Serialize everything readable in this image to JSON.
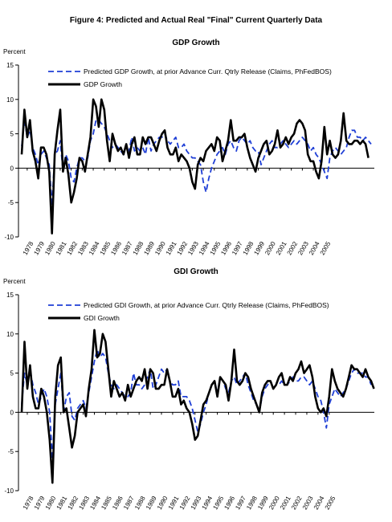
{
  "figure_title": "Figure 4: Predicted and Actual Real \"Final\" Current Quarterly Data",
  "chart_data": [
    {
      "type": "line",
      "title": "GDP Growth",
      "ylabel": "Percent",
      "ylim": [
        -10,
        15
      ],
      "yticks": [
        -10,
        -5,
        0,
        5,
        10,
        15
      ],
      "x_tick_labels": [
        "1978",
        "1979",
        "1980",
        "1981",
        "1982",
        "1983",
        "1984",
        "1985",
        "1986",
        "1987",
        "1988",
        "1989",
        "1990",
        "1991",
        "1992",
        "1993",
        "1994",
        "1995",
        "1996",
        "1997",
        "1998",
        "1999",
        "2000",
        "2001",
        "2002",
        "2003",
        "2004",
        "2005"
      ],
      "legend_position": "top-right",
      "series": [
        {
          "name": "Predicted GDP Growth, at prior Advance Curr. Qtrly Release (Claims, PhFedBOS)",
          "style": "dashed",
          "color": "#1f3fd6",
          "values": [
            3.2,
            7.0,
            4.5,
            5.5,
            3.0,
            2.0,
            0.5,
            2.0,
            2.5,
            1.5,
            0.5,
            -5.5,
            2.0,
            2.5,
            4.0,
            -0.5,
            2.0,
            1.0,
            -1.5,
            -2.0,
            0.0,
            1.5,
            1.5,
            1.0,
            1.5,
            4.0,
            5.0,
            7.0,
            7.0,
            6.5,
            6.0,
            5.0,
            4.0,
            3.0,
            3.5,
            3.0,
            2.5,
            2.0,
            2.0,
            2.5,
            4.5,
            2.5,
            3.0,
            2.5,
            3.0,
            2.0,
            4.5,
            2.5,
            3.5,
            4.0,
            4.5,
            4.5,
            5.0,
            4.0,
            3.5,
            4.0,
            4.5,
            3.0,
            3.0,
            3.5,
            2.5,
            2.0,
            1.5,
            1.5,
            1.0,
            0.5,
            -2.0,
            -3.5,
            -1.5,
            0.0,
            1.0,
            2.0,
            2.5,
            3.0,
            2.0,
            3.5,
            4.0,
            3.0,
            2.5,
            4.0,
            4.5,
            4.0,
            3.5,
            4.0,
            3.0,
            2.5,
            2.5,
            0.5,
            1.5,
            2.5,
            3.5,
            4.0,
            3.0,
            3.0,
            3.5,
            4.0,
            3.5,
            3.0,
            3.5,
            4.0,
            3.5,
            4.0,
            4.5,
            4.0,
            3.5,
            2.5,
            3.0,
            2.0,
            1.5,
            0.5,
            -0.5,
            -1.5,
            1.5,
            2.5,
            3.0,
            2.5,
            2.0,
            2.5,
            3.0,
            4.5,
            5.5,
            5.5,
            4.5,
            4.5,
            4.0,
            4.5,
            4.0,
            3.5
          ]
        },
        {
          "name": "GDP Growth",
          "style": "solid",
          "color": "#000000",
          "values": [
            2.0,
            8.5,
            4.5,
            7.0,
            2.5,
            1.0,
            -1.5,
            3.0,
            3.0,
            2.0,
            -0.5,
            -9.5,
            2.0,
            5.5,
            8.5,
            -0.5,
            1.5,
            -1.0,
            -5.0,
            -3.5,
            -1.5,
            1.5,
            1.0,
            -0.5,
            2.0,
            4.5,
            10.0,
            9.0,
            6.0,
            10.0,
            8.5,
            4.0,
            1.0,
            5.0,
            3.5,
            2.5,
            3.0,
            2.0,
            3.5,
            1.5,
            3.5,
            4.5,
            2.0,
            2.0,
            4.5,
            3.5,
            4.5,
            4.5,
            3.5,
            2.5,
            4.0,
            5.0,
            5.5,
            3.0,
            2.0,
            2.0,
            3.0,
            1.0,
            2.0,
            1.5,
            1.0,
            0.0,
            -2.0,
            -3.0,
            0.5,
            1.5,
            1.0,
            2.5,
            3.0,
            3.5,
            2.5,
            4.5,
            4.0,
            1.0,
            2.5,
            4.0,
            7.0,
            4.0,
            4.0,
            4.5,
            4.5,
            5.0,
            3.0,
            1.5,
            0.5,
            -0.5,
            1.5,
            2.5,
            3.5,
            4.0,
            2.0,
            2.5,
            3.5,
            5.5,
            3.0,
            3.5,
            4.5,
            3.5,
            4.5,
            5.0,
            6.5,
            7.0,
            6.5,
            5.5,
            2.0,
            1.0,
            1.0,
            -0.5,
            -1.5,
            1.0,
            6.0,
            2.0,
            4.0,
            2.0,
            1.5,
            2.0,
            4.0,
            8.0,
            4.0,
            3.5,
            3.5,
            4.0,
            4.0,
            3.5,
            4.0,
            3.5,
            1.5
          ]
        }
      ]
    },
    {
      "type": "line",
      "title": "GDI Growth",
      "ylabel": "Percent",
      "ylim": [
        -10,
        15
      ],
      "yticks": [
        -10,
        -5,
        0,
        5,
        10,
        15
      ],
      "x_tick_labels": [
        "1978",
        "1979",
        "1980",
        "1981",
        "1982",
        "1983",
        "1984",
        "1985",
        "1986",
        "1987",
        "1988",
        "1989",
        "1990",
        "1991",
        "1992",
        "1993",
        "1994",
        "1995",
        "1996",
        "1997",
        "1998",
        "1999",
        "2000",
        "2001",
        "2002",
        "2003",
        "2004",
        "2005"
      ],
      "legend_position": "top-right",
      "series": [
        {
          "name": "Predicted GDI Growth, at prior Advance Curr. Qtrly Release (Claims, PhFedBOS)",
          "style": "dashed",
          "color": "#1f3fd6",
          "values": [
            1.0,
            5.0,
            3.5,
            5.5,
            3.5,
            2.5,
            1.0,
            2.0,
            3.0,
            2.0,
            0.0,
            -6.0,
            1.0,
            3.0,
            5.0,
            0.0,
            2.0,
            2.5,
            -0.5,
            -1.0,
            0.5,
            1.0,
            1.5,
            0.5,
            2.5,
            4.5,
            6.5,
            8.0,
            7.0,
            7.5,
            7.0,
            5.0,
            3.5,
            3.0,
            3.5,
            3.0,
            2.5,
            2.0,
            2.0,
            2.5,
            5.0,
            3.5,
            3.5,
            3.0,
            3.5,
            4.5,
            5.5,
            3.0,
            3.5,
            4.5,
            5.5,
            5.0,
            5.5,
            4.0,
            3.5,
            3.5,
            4.0,
            2.0,
            2.0,
            2.0,
            1.5,
            0.5,
            -1.0,
            -2.5,
            -1.5,
            0.0,
            1.0,
            2.5,
            3.5,
            4.0,
            2.5,
            4.5,
            4.0,
            3.0,
            2.5,
            4.0,
            4.5,
            3.5,
            4.0,
            4.5,
            5.0,
            3.5,
            2.5,
            1.5,
            1.0,
            0.0,
            2.0,
            3.0,
            3.5,
            4.0,
            3.0,
            3.5,
            3.5,
            4.0,
            3.5,
            3.5,
            4.0,
            4.5,
            4.0,
            4.0,
            4.5,
            4.5,
            4.0,
            3.5,
            4.0,
            3.0,
            2.0,
            1.5,
            0.0,
            -2.0,
            1.0,
            2.0,
            3.0,
            2.5,
            2.0,
            2.5,
            3.0,
            4.0,
            5.0,
            5.5,
            5.0,
            5.0,
            5.0,
            4.5,
            4.5,
            3.5
          ]
        },
        {
          "name": "GDI Growth",
          "style": "solid",
          "color": "#000000",
          "values": [
            0.0,
            9.0,
            3.0,
            6.0,
            2.0,
            0.5,
            0.5,
            3.0,
            2.0,
            0.0,
            -3.5,
            -9.0,
            2.0,
            6.0,
            7.0,
            0.0,
            0.5,
            -2.0,
            -4.5,
            -3.0,
            0.0,
            0.5,
            1.0,
            -0.5,
            3.0,
            5.5,
            10.5,
            7.0,
            7.5,
            10.0,
            9.0,
            5.5,
            2.0,
            4.0,
            3.0,
            2.0,
            2.5,
            1.5,
            3.5,
            2.0,
            3.0,
            4.0,
            4.5,
            4.0,
            5.5,
            3.0,
            5.5,
            5.0,
            3.0,
            3.0,
            3.5,
            3.5,
            5.5,
            4.0,
            2.0,
            2.0,
            3.0,
            1.0,
            1.5,
            0.5,
            0.0,
            -1.5,
            -3.5,
            -3.0,
            -1.0,
            1.0,
            1.5,
            2.5,
            3.5,
            4.0,
            2.0,
            4.5,
            4.0,
            3.5,
            1.5,
            4.0,
            8.0,
            4.0,
            3.5,
            4.0,
            5.0,
            4.5,
            3.0,
            2.0,
            1.0,
            0.0,
            2.5,
            3.5,
            4.0,
            4.0,
            3.0,
            3.5,
            4.5,
            5.0,
            3.5,
            3.5,
            4.5,
            4.0,
            5.0,
            5.5,
            6.5,
            5.0,
            5.5,
            6.0,
            4.5,
            2.0,
            0.5,
            0.0,
            0.5,
            -0.5,
            2.0,
            5.5,
            4.0,
            3.0,
            2.5,
            2.0,
            3.0,
            4.5,
            6.0,
            5.5,
            5.5,
            5.0,
            4.5,
            5.5,
            4.5,
            4.0,
            3.0
          ]
        }
      ]
    }
  ]
}
